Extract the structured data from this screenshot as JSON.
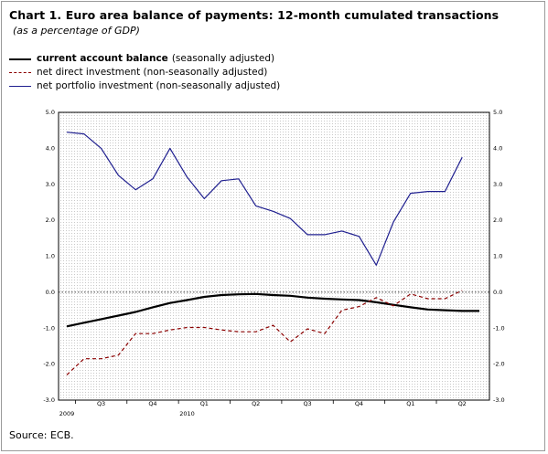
{
  "title": "Chart 1. Euro area balance of payments: 12-month cumulated transactions",
  "subtitle": "(as a percentage of GDP)",
  "source": "Source: ECB.",
  "legend": [
    {
      "bold": "current account balance",
      "rest": "(seasonally adjusted)"
    },
    {
      "bold": "",
      "rest": "net direct investment (non-seasonally adjusted)"
    },
    {
      "bold": "",
      "rest": "net portfolio investment (non-seasonally adjusted)"
    }
  ],
  "colors": {
    "current_account": "#000000",
    "direct_investment": "#8b0000",
    "portfolio": "#1f1f8f"
  },
  "chart_data": {
    "type": "line",
    "title": "Chart 1. Euro area balance of payments: 12-month cumulated transactions",
    "subtitle": "(as a percentage of GDP)",
    "ylim": [
      -3.0,
      5.0
    ],
    "y_ticks": [
      "5.0",
      "4.0",
      "3.0",
      "2.0",
      "1.0",
      "0.0",
      "-1.0",
      "-2.0",
      "-3.0"
    ],
    "x_quarter_labels": [
      "Q3",
      "Q4",
      "Q1",
      "Q2",
      "Q3",
      "Q4",
      "Q1",
      "Q2"
    ],
    "x_year_labels": [
      "2009",
      "2010"
    ],
    "x_months": [
      "2009-06",
      "2009-07",
      "2009-08",
      "2009-09",
      "2009-10",
      "2009-11",
      "2009-12",
      "2010-01",
      "2010-02",
      "2010-03",
      "2010-04",
      "2010-05",
      "2010-06",
      "2010-07",
      "2010-08",
      "2010-09",
      "2010-10",
      "2010-11",
      "2010-12",
      "2011-01",
      "2011-02",
      "2011-03",
      "2011-04",
      "2011-05",
      "2011-06"
    ],
    "grid": "dotted",
    "legend_position": "top-left",
    "series": [
      {
        "name": "current account balance",
        "style": "solid-thick",
        "values": [
          -0.95,
          -0.85,
          -0.75,
          -0.65,
          -0.55,
          -0.42,
          -0.3,
          -0.22,
          -0.13,
          -0.08,
          -0.06,
          -0.05,
          -0.08,
          -0.1,
          -0.15,
          -0.18,
          -0.2,
          -0.22,
          -0.28,
          -0.35,
          -0.42,
          -0.48,
          -0.5,
          -0.52,
          -0.52
        ]
      },
      {
        "name": "net direct investment",
        "style": "dashed",
        "values": [
          -2.3,
          -1.85,
          -1.85,
          -1.75,
          -1.15,
          -1.15,
          -1.05,
          -0.98,
          -0.98,
          -1.05,
          -1.1,
          -1.1,
          -0.92,
          -1.38,
          -1.02,
          -1.15,
          -0.5,
          -0.4,
          -0.15,
          -0.38,
          -0.05,
          -0.18,
          -0.18,
          0.05,
          null
        ]
      },
      {
        "name": "net portfolio investment",
        "style": "solid",
        "values": [
          4.45,
          4.4,
          4.0,
          3.25,
          2.85,
          3.15,
          4.0,
          3.2,
          2.6,
          3.1,
          3.15,
          2.4,
          2.25,
          2.05,
          1.6,
          1.6,
          1.7,
          1.55,
          0.75,
          1.95,
          2.75,
          2.8,
          2.8,
          3.75,
          null
        ]
      }
    ]
  }
}
